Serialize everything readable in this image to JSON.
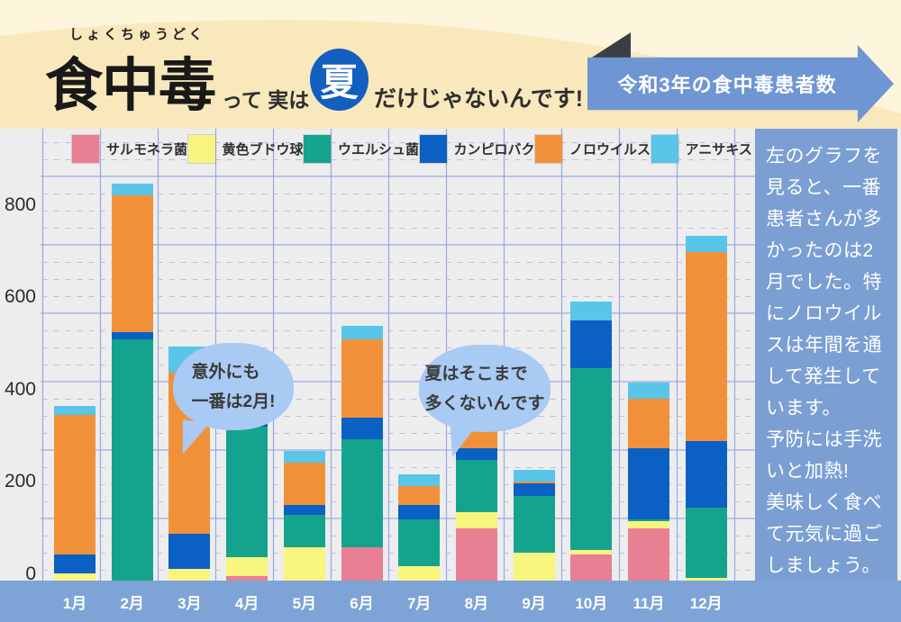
{
  "header": {
    "furigana": "しょくちゅうどく",
    "title": "食中毒",
    "phrase_before": "って 実は",
    "highlight_word": "夏",
    "phrase_after": "だけじゃないんです!",
    "badge_label": "令和3年の食中毒患者数"
  },
  "chart_data": {
    "type": "bar",
    "stacked": true,
    "title": "令和3年の食中毒患者数",
    "categories": [
      "1月",
      "2月",
      "3月",
      "4月",
      "5月",
      "6月",
      "7月",
      "8月",
      "9月",
      "10月",
      "11月",
      "12月"
    ],
    "series": [
      {
        "name": "サルモネラ菌",
        "color": "#e87f92",
        "values": [
          0,
          0,
          0,
          10,
          0,
          70,
          0,
          110,
          0,
          55,
          110,
          0
        ]
      },
      {
        "name": "黄色ブドウ球菌",
        "color": "#f8f57e",
        "values": [
          15,
          0,
          25,
          40,
          70,
          0,
          30,
          35,
          60,
          10,
          15,
          5
        ]
      },
      {
        "name": "ウエルシュ菌",
        "color": "#14a48e",
        "values": [
          0,
          510,
          0,
          275,
          70,
          230,
          100,
          110,
          120,
          385,
          5,
          150
        ]
      },
      {
        "name": "カンピロバクター",
        "color": "#0a60c3",
        "values": [
          40,
          15,
          75,
          135,
          20,
          45,
          30,
          25,
          25,
          100,
          150,
          140
        ]
      },
      {
        "name": "ノロウイルス",
        "color": "#f0913a",
        "values": [
          295,
          290,
          340,
          0,
          90,
          165,
          40,
          170,
          5,
          0,
          105,
          400
        ]
      },
      {
        "name": "アニサキス",
        "color": "#58c5e9",
        "values": [
          20,
          25,
          55,
          20,
          25,
          30,
          25,
          30,
          25,
          40,
          35,
          35
        ]
      }
    ],
    "yticks": [
      0,
      200,
      400,
      600,
      800
    ],
    "ylim": [
      0,
      900
    ],
    "xlabel": "",
    "ylabel": "",
    "grid": true,
    "legend_position": "top"
  },
  "annotations": {
    "bubble_feb": "意外にも\n一番は2月!",
    "bubble_summer": "夏はそこまで\n多くないんです"
  },
  "sidebar": {
    "paragraphs": [
      "左のグラフを見ると、一番患者さんが多かったのは2月でした。特にノロウイルスは年間を通して発生しています。",
      "予防には手洗いと加熱!",
      "美味しく食べて元気に過ごしましょう。"
    ]
  },
  "colors": {
    "header_light": "#fdf6dc",
    "header_dark": "#f8e8bc",
    "badge_blue": "#6e96d3",
    "fold_dark": "#3a3f46",
    "summer_circle_blue": "#135fc0",
    "panel_bg": "#ededee",
    "grid_solid": "#98a8e1",
    "grid_dashed": "#b4bdec",
    "bubble_blue": "#a9caf3",
    "sidebar_blue": "#7b9fd3",
    "strip_blue": "#7ea3d7"
  }
}
